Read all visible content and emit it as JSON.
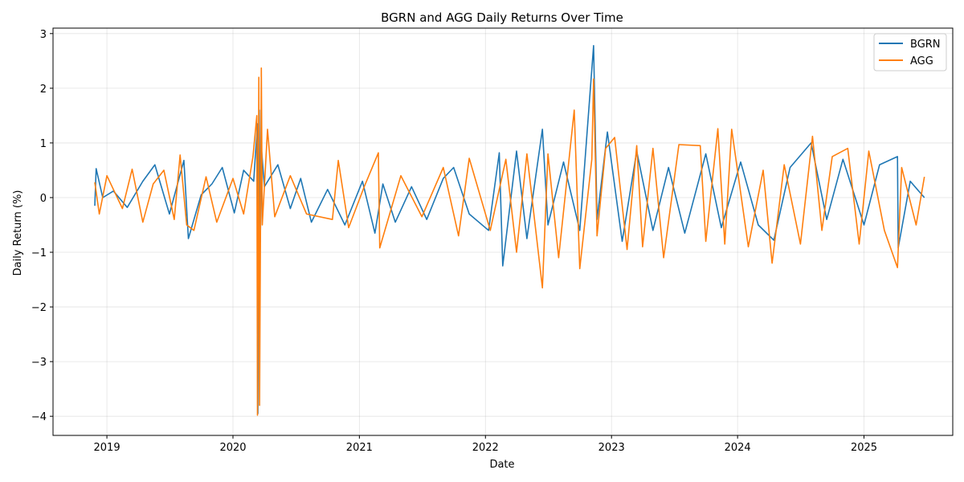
{
  "chart_data": {
    "type": "line",
    "title": "BGRN and AGG Daily Returns Over Time",
    "xlabel": "Date",
    "ylabel": "Daily Return (%)",
    "x_ticks": [
      "2019",
      "2020",
      "2021",
      "2022",
      "2023",
      "2024",
      "2025"
    ],
    "y_ticks": [
      3,
      2,
      1,
      0,
      -1,
      -2,
      -3,
      -4
    ],
    "y_tick_labels": [
      "3",
      "2",
      "1",
      "0",
      "−1",
      "−2",
      "−3",
      "−4"
    ],
    "xlim": [
      "2018-07-29",
      "2025-09-15"
    ],
    "ylim": [
      -4.35,
      3.1
    ],
    "grid": true,
    "legend_position": "top-right",
    "series": [
      {
        "name": "BGRN",
        "color": "#1f77b4",
        "points": [
          [
            "2018-11-27",
            -0.15
          ],
          [
            "2018-12-01",
            0.53
          ],
          [
            "2018-12-20",
            0.0
          ],
          [
            "2019-01-20",
            0.12
          ],
          [
            "2019-03-01",
            -0.18
          ],
          [
            "2019-04-15",
            0.3
          ],
          [
            "2019-05-20",
            0.6
          ],
          [
            "2019-07-01",
            -0.3
          ],
          [
            "2019-08-12",
            0.68
          ],
          [
            "2019-08-25",
            -0.75
          ],
          [
            "2019-10-01",
            0.05
          ],
          [
            "2019-11-01",
            0.25
          ],
          [
            "2019-12-01",
            0.55
          ],
          [
            "2020-01-05",
            -0.28
          ],
          [
            "2020-02-01",
            0.5
          ],
          [
            "2020-03-01",
            0.3
          ],
          [
            "2020-03-12",
            1.35
          ],
          [
            "2020-03-13",
            -3.95
          ],
          [
            "2020-03-17",
            1.6
          ],
          [
            "2020-03-20",
            -0.8
          ],
          [
            "2020-03-24",
            0.85
          ],
          [
            "2020-04-01",
            0.2
          ],
          [
            "2020-05-10",
            0.6
          ],
          [
            "2020-06-15",
            -0.2
          ],
          [
            "2020-07-15",
            0.35
          ],
          [
            "2020-08-15",
            -0.45
          ],
          [
            "2020-10-01",
            0.15
          ],
          [
            "2020-11-20",
            -0.5
          ],
          [
            "2021-01-10",
            0.3
          ],
          [
            "2021-02-15",
            -0.65
          ],
          [
            "2021-03-10",
            0.25
          ],
          [
            "2021-04-15",
            -0.45
          ],
          [
            "2021-06-01",
            0.2
          ],
          [
            "2021-07-15",
            -0.4
          ],
          [
            "2021-09-01",
            0.35
          ],
          [
            "2021-10-01",
            0.55
          ],
          [
            "2021-11-15",
            -0.3
          ],
          [
            "2022-01-10",
            -0.6
          ],
          [
            "2022-02-10",
            0.82
          ],
          [
            "2022-02-20",
            -1.25
          ],
          [
            "2022-04-01",
            0.85
          ],
          [
            "2022-05-01",
            -0.75
          ],
          [
            "2022-06-15",
            1.25
          ],
          [
            "2022-07-01",
            -0.5
          ],
          [
            "2022-08-15",
            0.65
          ],
          [
            "2022-10-01",
            -0.6
          ],
          [
            "2022-11-10",
            2.78
          ],
          [
            "2022-11-20",
            -0.4
          ],
          [
            "2022-12-20",
            1.2
          ],
          [
            "2023-02-01",
            -0.8
          ],
          [
            "2023-03-15",
            0.85
          ],
          [
            "2023-05-01",
            -0.6
          ],
          [
            "2023-06-15",
            0.55
          ],
          [
            "2023-08-01",
            -0.65
          ],
          [
            "2023-10-01",
            0.8
          ],
          [
            "2023-11-15",
            -0.55
          ],
          [
            "2024-01-10",
            0.65
          ],
          [
            "2024-03-01",
            -0.5
          ],
          [
            "2024-04-15",
            -0.78
          ],
          [
            "2024-06-01",
            0.55
          ],
          [
            "2024-08-01",
            1.0
          ],
          [
            "2024-09-15",
            -0.4
          ],
          [
            "2024-11-01",
            0.7
          ],
          [
            "2025-01-01",
            -0.5
          ],
          [
            "2025-02-15",
            0.6
          ],
          [
            "2025-04-08",
            0.75
          ],
          [
            "2025-04-10",
            -0.92
          ],
          [
            "2025-05-15",
            0.3
          ],
          [
            "2025-06-25",
            0.0
          ]
        ]
      },
      {
        "name": "AGG",
        "color": "#ff7f0e",
        "points": [
          [
            "2018-11-27",
            0.28
          ],
          [
            "2018-12-10",
            -0.3
          ],
          [
            "2019-01-01",
            0.4
          ],
          [
            "2019-02-15",
            -0.2
          ],
          [
            "2019-03-15",
            0.52
          ],
          [
            "2019-04-15",
            -0.45
          ],
          [
            "2019-05-15",
            0.25
          ],
          [
            "2019-06-15",
            0.5
          ],
          [
            "2019-07-15",
            -0.4
          ],
          [
            "2019-08-01",
            0.78
          ],
          [
            "2019-08-20",
            -0.5
          ],
          [
            "2019-09-10",
            -0.6
          ],
          [
            "2019-10-15",
            0.38
          ],
          [
            "2019-11-15",
            -0.45
          ],
          [
            "2020-01-01",
            0.35
          ],
          [
            "2020-02-01",
            -0.3
          ],
          [
            "2020-02-28",
            0.75
          ],
          [
            "2020-03-10",
            1.5
          ],
          [
            "2020-03-12",
            -3.98
          ],
          [
            "2020-03-16",
            2.2
          ],
          [
            "2020-03-18",
            -3.8
          ],
          [
            "2020-03-23",
            2.37
          ],
          [
            "2020-03-26",
            -0.5
          ],
          [
            "2020-04-10",
            1.25
          ],
          [
            "2020-05-01",
            -0.35
          ],
          [
            "2020-06-15",
            0.4
          ],
          [
            "2020-08-01",
            -0.3
          ],
          [
            "2020-10-15",
            -0.4
          ],
          [
            "2020-11-01",
            0.68
          ],
          [
            "2020-12-01",
            -0.55
          ],
          [
            "2021-01-15",
            0.2
          ],
          [
            "2021-02-25",
            0.82
          ],
          [
            "2021-03-01",
            -0.92
          ],
          [
            "2021-05-01",
            0.4
          ],
          [
            "2021-07-01",
            -0.35
          ],
          [
            "2021-09-01",
            0.55
          ],
          [
            "2021-10-15",
            -0.7
          ],
          [
            "2021-11-15",
            0.72
          ],
          [
            "2022-01-15",
            -0.6
          ],
          [
            "2022-03-01",
            0.7
          ],
          [
            "2022-04-01",
            -1.0
          ],
          [
            "2022-05-01",
            0.8
          ],
          [
            "2022-06-15",
            -1.65
          ],
          [
            "2022-07-01",
            0.8
          ],
          [
            "2022-08-01",
            -1.1
          ],
          [
            "2022-09-15",
            1.6
          ],
          [
            "2022-10-01",
            -1.3
          ],
          [
            "2022-11-05",
            0.7
          ],
          [
            "2022-11-10",
            2.17
          ],
          [
            "2022-11-20",
            -0.7
          ],
          [
            "2022-12-15",
            0.9
          ],
          [
            "2023-01-10",
            1.1
          ],
          [
            "2023-02-15",
            -0.95
          ],
          [
            "2023-03-15",
            0.95
          ],
          [
            "2023-04-01",
            -0.9
          ],
          [
            "2023-05-01",
            0.9
          ],
          [
            "2023-06-01",
            -1.1
          ],
          [
            "2023-07-15",
            0.97
          ],
          [
            "2023-09-15",
            0.95
          ],
          [
            "2023-10-01",
            -0.8
          ],
          [
            "2023-11-05",
            1.26
          ],
          [
            "2023-11-25",
            -0.85
          ],
          [
            "2023-12-15",
            1.25
          ],
          [
            "2024-02-01",
            -0.9
          ],
          [
            "2024-03-15",
            0.5
          ],
          [
            "2024-04-10",
            -1.2
          ],
          [
            "2024-05-15",
            0.6
          ],
          [
            "2024-07-01",
            -0.85
          ],
          [
            "2024-08-05",
            1.12
          ],
          [
            "2024-09-01",
            -0.6
          ],
          [
            "2024-10-01",
            0.75
          ],
          [
            "2024-11-15",
            0.9
          ],
          [
            "2024-12-18",
            -0.85
          ],
          [
            "2025-01-15",
            0.85
          ],
          [
            "2025-03-01",
            -0.6
          ],
          [
            "2025-04-08",
            -1.28
          ],
          [
            "2025-04-20",
            0.55
          ],
          [
            "2025-06-01",
            -0.5
          ],
          [
            "2025-06-25",
            0.38
          ]
        ]
      }
    ]
  }
}
